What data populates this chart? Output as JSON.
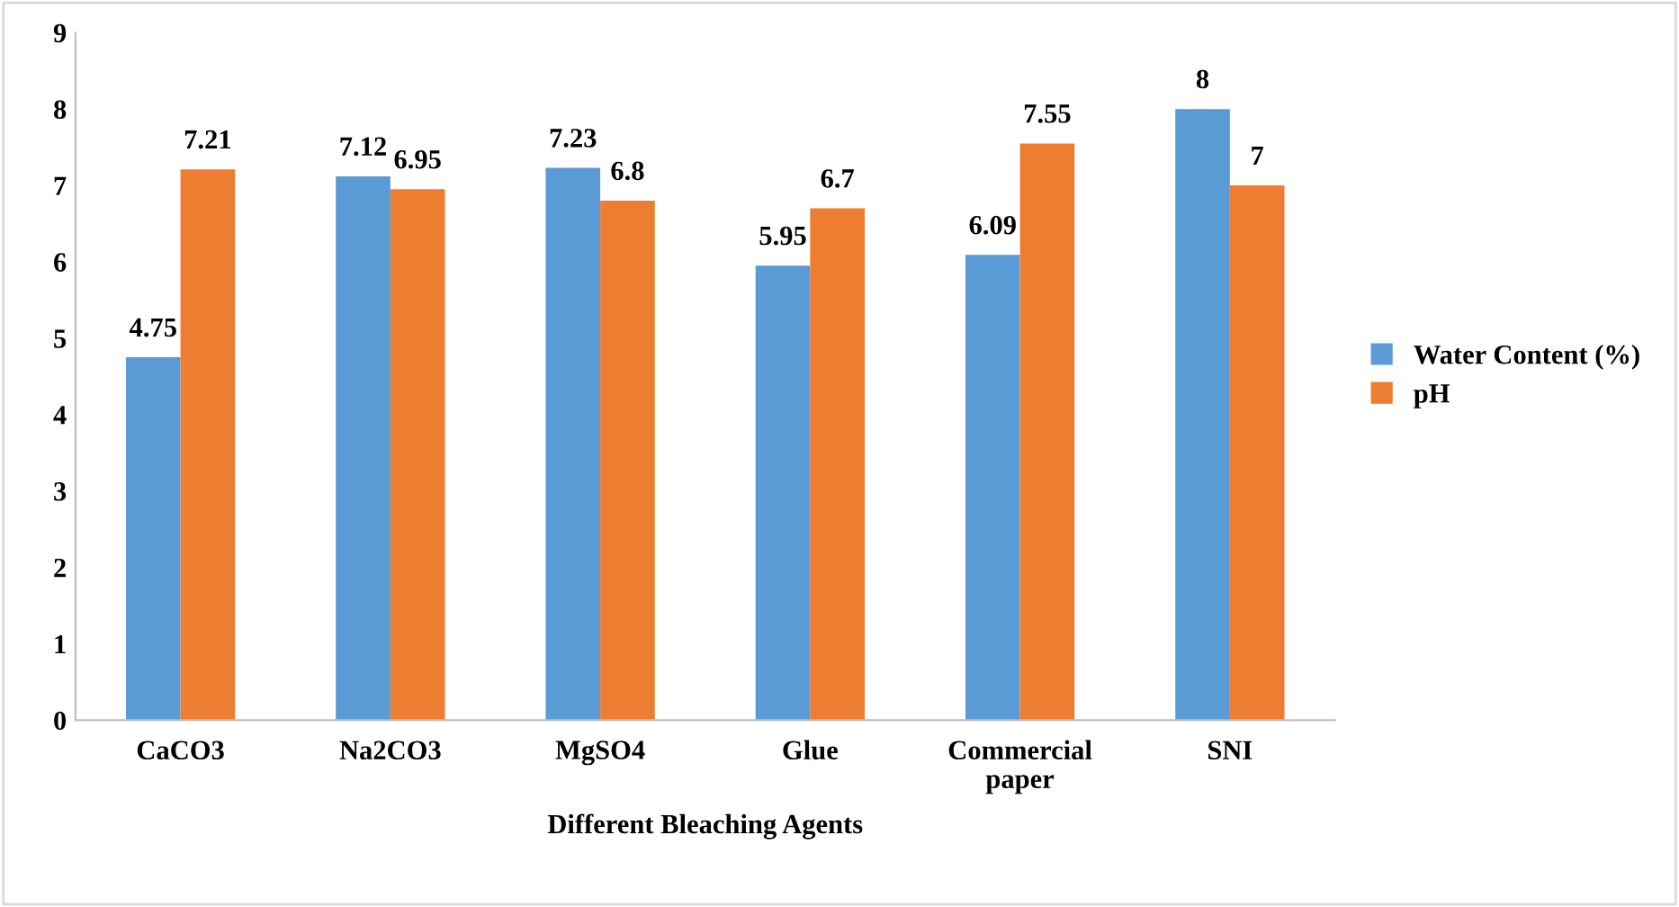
{
  "chart_data": {
    "type": "bar",
    "xlabel": "Different Bleaching Agents",
    "categories": [
      "CaCO3",
      "Na2CO3",
      "MgSO4",
      "Glue",
      "Commercial\npaper",
      "SNI"
    ],
    "series": [
      {
        "name": "Water Content (%)",
        "color": "#5b9bd5",
        "values": [
          4.75,
          7.12,
          7.23,
          5.95,
          6.09,
          8
        ]
      },
      {
        "name": "pH",
        "color": "#ed7d31",
        "values": [
          7.21,
          6.95,
          6.8,
          6.7,
          7.55,
          7
        ]
      }
    ],
    "ylim": [
      0,
      9
    ],
    "yticks": [
      0,
      1,
      2,
      3,
      4,
      5,
      6,
      7,
      8,
      9
    ],
    "grid": false,
    "legend": "right",
    "data_labels": true
  }
}
